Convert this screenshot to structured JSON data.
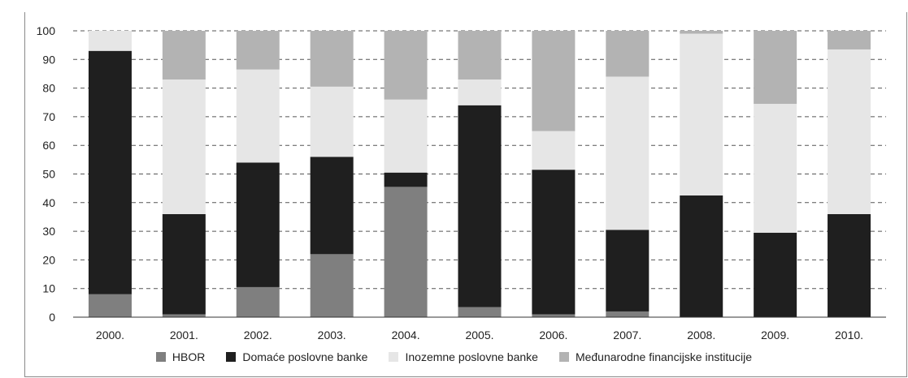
{
  "chart_data": {
    "type": "bar",
    "stacked": true,
    "title": "",
    "xlabel": "",
    "ylabel": "",
    "ylim": [
      0,
      100
    ],
    "yticks": [
      "0",
      "10",
      "20",
      "30",
      "40",
      "50",
      "60",
      "70",
      "80",
      "90",
      "100"
    ],
    "grid": "horizontal dashed",
    "legend_position": "bottom",
    "categories": [
      "2000.",
      "2001.",
      "2002.",
      "2003.",
      "2004.",
      "2005.",
      "2006.",
      "2007.",
      "2008.",
      "2009.",
      "2010."
    ],
    "series": [
      {
        "name": "HBOR",
        "color": "#7f7f7f",
        "values": [
          8,
          1,
          10.5,
          22,
          45.5,
          3.5,
          1,
          2,
          0,
          0,
          0
        ]
      },
      {
        "name": "Domaće poslovne banke",
        "color": "#1f1f1f",
        "values": [
          85,
          35,
          43.5,
          34,
          5,
          70.5,
          50.5,
          28.5,
          42.5,
          29.5,
          36
        ]
      },
      {
        "name": "Inozemne poslovne banke",
        "color": "#e6e6e6",
        "values": [
          7,
          47,
          32.5,
          24.5,
          25.5,
          9,
          13.5,
          53.5,
          56.5,
          45,
          57.5
        ]
      },
      {
        "name": "Međunarodne financijske institucije",
        "color": "#b3b3b3",
        "values": [
          0,
          17,
          13.5,
          19.5,
          24,
          17,
          35,
          16,
          1,
          25.5,
          6.5
        ]
      }
    ]
  }
}
